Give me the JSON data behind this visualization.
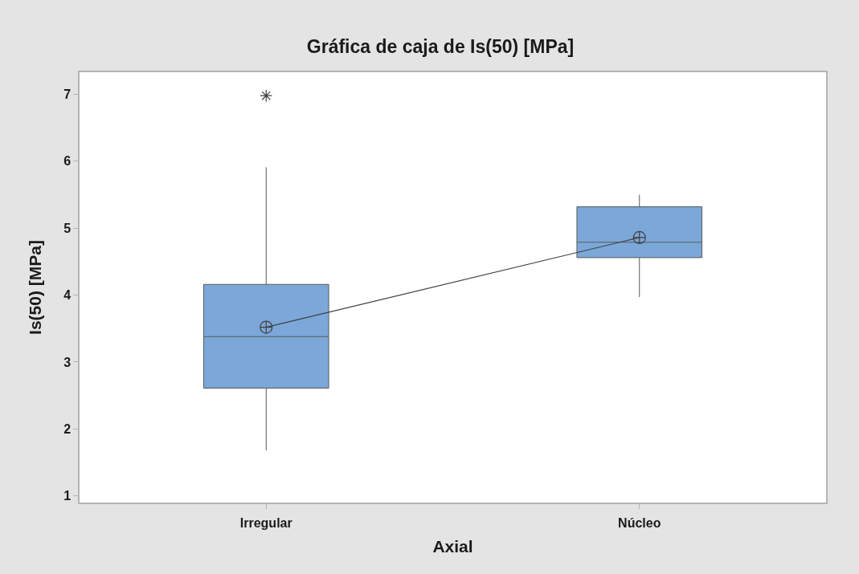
{
  "chart_data": {
    "type": "box",
    "title": "Gráfica de caja de Is(50) [MPa]",
    "xlabel": "Axial",
    "ylabel": "Is(50) [MPa]",
    "categories": [
      "Irregular",
      "Núcleo"
    ],
    "boxes": [
      {
        "low": 1.68,
        "q1": 2.61,
        "median": 3.38,
        "q3": 4.16,
        "high": 5.91,
        "mean": 3.52,
        "outliers": [
          6.98
        ]
      },
      {
        "low": 3.97,
        "q1": 4.56,
        "median": 4.79,
        "q3": 5.32,
        "high": 5.5,
        "mean": 4.86
      }
    ],
    "color": "#7ba7d9",
    "series": [
      {
        "type": "line",
        "values": [
          3.52,
          4.86
        ],
        "color": "#404040",
        "marker": "none"
      }
    ],
    "ylim": [
      0.9,
      7.33
    ],
    "yticks": [
      1,
      2,
      3,
      4,
      5,
      6,
      7
    ],
    "grid": false
  }
}
